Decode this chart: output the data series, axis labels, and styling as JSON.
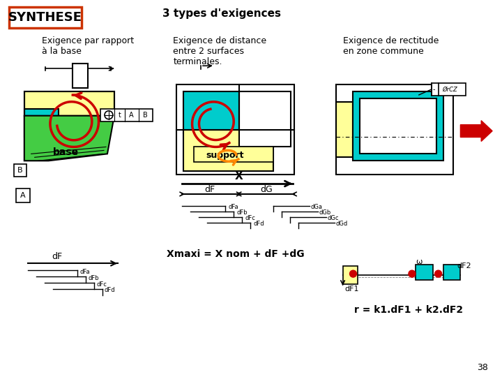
{
  "bg_color": "#f0f0f0",
  "title_synthese": "SYNTHESE",
  "title_main": "3 types d'exigences",
  "col1_title": "Exigence par rapport\nà la base",
  "col2_title": "Exigence de distance\nentre 2 surfaces\nterminales.",
  "col3_title": "Exigence de rectitude\nen zone commune",
  "label_base": "base",
  "label_support": "support",
  "label_X": "X",
  "label_dF": "dF",
  "label_dG": "dG",
  "formula1": "Xmaxi = X nom + dF +dG",
  "formula2": "r = k1.dF1 + k2.dF2",
  "page_num": "38",
  "red_color": "#cc0000",
  "orange_color": "#ff8800",
  "yellow_color": "#ffff99",
  "cyan_color": "#00cccc",
  "green_color": "#44cc44",
  "dark_color": "#111111",
  "box_border": "#cc3300"
}
